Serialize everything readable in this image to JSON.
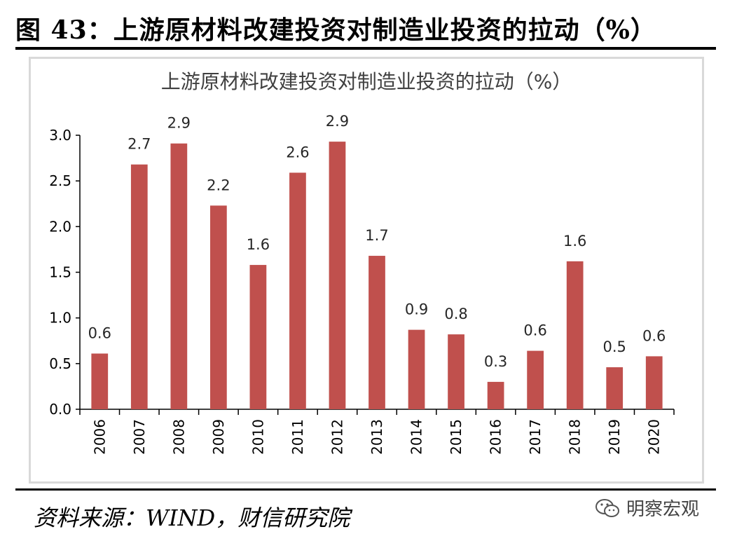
{
  "figure": {
    "header": "图 43：上游原材料改建投资对制造业投资的拉动（%）",
    "source": "资料来源：WIND，财信研究院",
    "watermark": "明察宏观",
    "watermark_icon": "wechat-icon"
  },
  "chart_data": {
    "type": "bar",
    "title": "上游原材料改建投资对制造业投资的拉动（%）",
    "categories": [
      "2006",
      "2007",
      "2008",
      "2009",
      "2010",
      "2011",
      "2012",
      "2013",
      "2014",
      "2015",
      "2016",
      "2017",
      "2018",
      "2019",
      "2020"
    ],
    "values": [
      0.61,
      2.68,
      2.91,
      2.23,
      1.58,
      2.59,
      2.93,
      1.68,
      0.87,
      0.82,
      0.3,
      0.64,
      1.62,
      0.46,
      0.58
    ],
    "data_labels": [
      "0.6",
      "2.7",
      "2.9",
      "2.2",
      "1.6",
      "2.6",
      "2.9",
      "1.7",
      "0.9",
      "0.8",
      "0.3",
      "0.6",
      "1.6",
      "0.5",
      "0.6"
    ],
    "ylim": [
      0,
      3.0
    ],
    "yticks": [
      "0.0",
      "0.5",
      "1.0",
      "1.5",
      "2.0",
      "2.5",
      "3.0"
    ],
    "ytick_values": [
      0,
      0.5,
      1.0,
      1.5,
      2.0,
      2.5,
      3.0
    ],
    "xlabel": "",
    "ylabel": "",
    "grid": false,
    "legend": "none",
    "bar_color": "#c0504d"
  }
}
